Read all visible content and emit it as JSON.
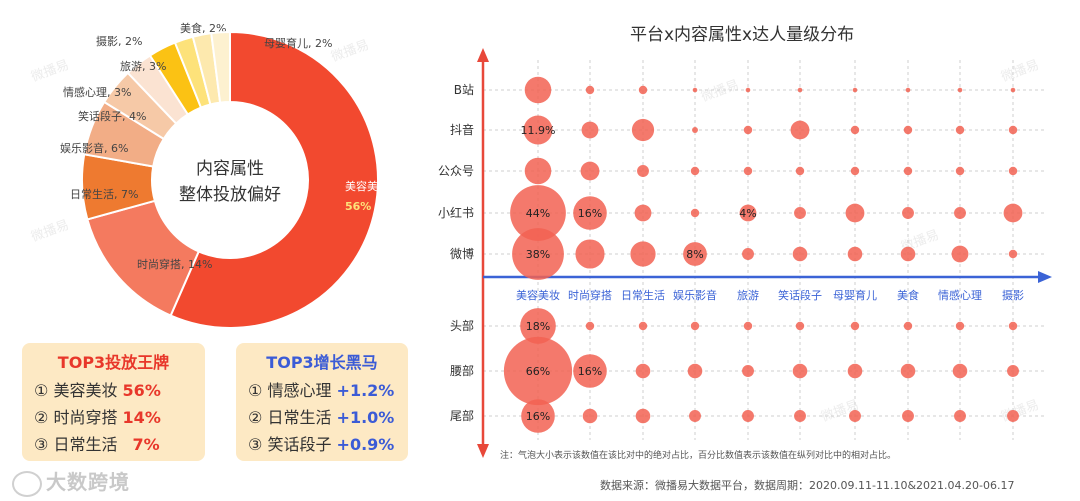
{
  "watermark": "微播易",
  "brand": "大数跨境",
  "donut": {
    "center_line1": "内容属性",
    "center_line2": "整体投放偏好",
    "slices": [
      {
        "label": "美容美妆",
        "value": 56,
        "color": "#f2492f"
      },
      {
        "label": "时尚穿搭",
        "value": 14,
        "color": "#f47a5f"
      },
      {
        "label": "日常生活",
        "value": 7,
        "color": "#ee7a30"
      },
      {
        "label": "娱乐影音",
        "value": 6,
        "color": "#f2ad86"
      },
      {
        "label": "笑话段子",
        "value": 4,
        "color": "#f6c9a7"
      },
      {
        "label": "情感心理",
        "value": 3,
        "color": "#fbe3d2"
      },
      {
        "label": "旅游",
        "value": 3,
        "color": "#fbc214"
      },
      {
        "label": "摄影",
        "value": 2,
        "color": "#fde27a"
      },
      {
        "label": "美食",
        "value": 2,
        "color": "#fde9ae"
      },
      {
        "label": "母婴育儿",
        "value": 2,
        "color": "#fdf1d0"
      }
    ],
    "slice_labels": [
      "美容美妆,",
      "时尚穿搭, 14%",
      "日常生活, 7%",
      "娱乐影音, 6%",
      "笑话段子, 4%",
      "情感心理, 3%",
      "旅游, 3%",
      "摄影, 2%",
      "美食, 2%",
      "母婴育儿, 2%"
    ],
    "main_pct": "56%"
  },
  "top3_put": {
    "title": "TOP3投放王牌",
    "items": [
      {
        "rank": "①",
        "name": "美容美妆",
        "value": "56%"
      },
      {
        "rank": "②",
        "name": "时尚穿搭",
        "value": "14%"
      },
      {
        "rank": "③",
        "name": "日常生活",
        "value": "7%"
      }
    ]
  },
  "top3_growth": {
    "title": "TOP3增长黑马",
    "items": [
      {
        "rank": "①",
        "name": "情感心理",
        "value": "+1.2%"
      },
      {
        "rank": "②",
        "name": "日常生活",
        "value": "+1.0%"
      },
      {
        "rank": "③",
        "name": "笑话段子",
        "value": "+0.9%"
      }
    ]
  },
  "chart_data": {
    "type": "scatter",
    "title": "平台x内容属性x达人量级分布",
    "categories": [
      "美容美妆",
      "时尚穿搭",
      "日常生活",
      "娱乐影音",
      "旅游",
      "笑话段子",
      "母婴育儿",
      "美食",
      "情感心理",
      "摄影"
    ],
    "platform_rows": [
      "B站",
      "抖音",
      "公众号",
      "小红书",
      "微博"
    ],
    "tier_rows": [
      "头部",
      "腰部",
      "尾部"
    ],
    "platform_values": [
      [
        10,
        1,
        1,
        0.3,
        0.3,
        0.3,
        0.3,
        0.3,
        0.3,
        0.3
      ],
      [
        11.9,
        4,
        7,
        0.5,
        1,
        5,
        1,
        1,
        1,
        1
      ],
      [
        10,
        5,
        2,
        1,
        1,
        1,
        1,
        1,
        1,
        1
      ],
      [
        44,
        16,
        4,
        1,
        4,
        2,
        5,
        2,
        2,
        5
      ],
      [
        38,
        12,
        9,
        8,
        2,
        3,
        3,
        3,
        4,
        1
      ]
    ],
    "tier_values": [
      [
        18,
        1,
        1,
        1,
        1,
        1,
        1,
        1,
        1,
        1
      ],
      [
        66,
        16,
        3,
        3,
        2,
        3,
        3,
        3,
        3,
        2
      ],
      [
        16,
        3,
        3,
        2,
        2,
        2,
        2,
        2,
        2,
        2
      ]
    ],
    "platform_labels": [
      [
        "",
        "",
        "",
        "",
        "",
        "",
        "",
        "",
        "",
        ""
      ],
      [
        "11.9%",
        "",
        "",
        "",
        "",
        "",
        "",
        "",
        "",
        ""
      ],
      [
        "",
        "",
        "",
        "",
        "",
        "",
        "",
        "",
        "",
        ""
      ],
      [
        "44%",
        "16%",
        "",
        "",
        "4%",
        "",
        "",
        "",
        "",
        ""
      ],
      [
        "38%",
        "",
        "",
        "8%",
        "",
        "",
        "",
        "",
        "",
        ""
      ]
    ],
    "tier_labels": [
      [
        "18%",
        "",
        "",
        "",
        "",
        "",
        "",
        "",
        "",
        ""
      ],
      [
        "66%",
        "16%",
        "",
        "",
        "",
        "",
        "",
        "",
        "",
        ""
      ],
      [
        "16%",
        "",
        "",
        "",
        "",
        "",
        "",
        "",
        "",
        ""
      ]
    ],
    "note": "注：气泡大小表示该数值在该比对中的绝对占比，百分比数值表示该数值在纵列对比中的相对占比。",
    "source": "数据来源：微播易大数据平台，数据周期：2020.09.11-11.10&2021.04.20-06.17"
  },
  "colors": {
    "bubble": "#f26252",
    "y_axis": "#e8483a",
    "x_axis": "#3b63d6",
    "top3_put": "#e8372a",
    "top3_growth": "#3b5bd6"
  }
}
